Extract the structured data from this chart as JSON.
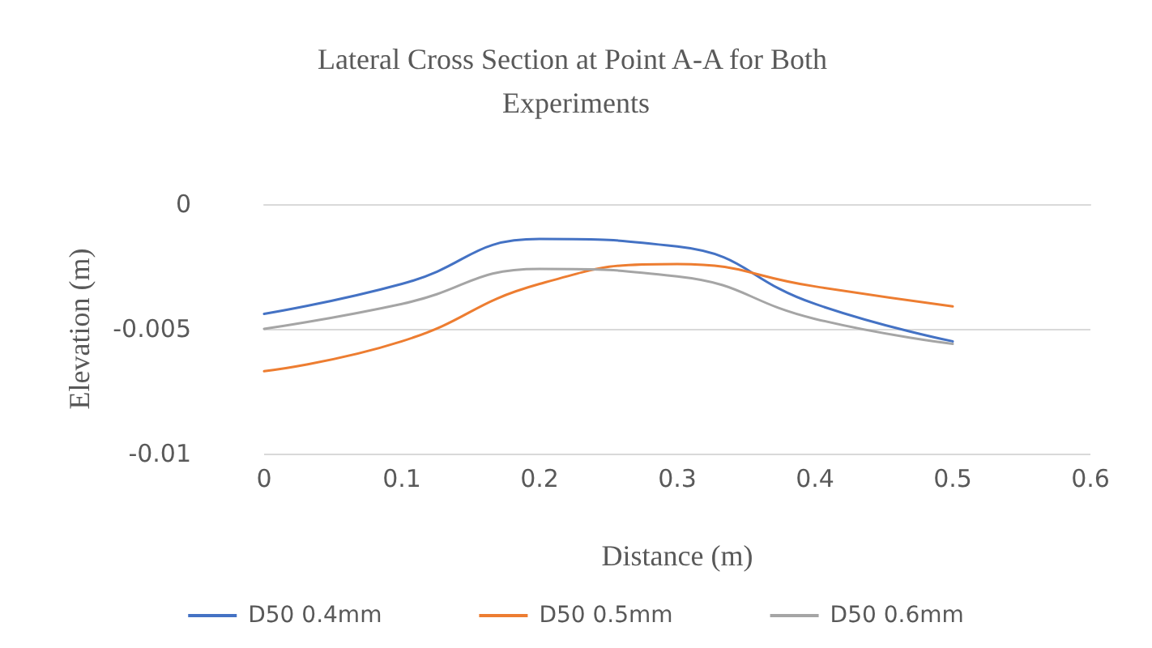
{
  "chart_data": {
    "type": "line",
    "title": "Lateral Cross Section at Point A-A for Both Experiments",
    "xlabel": "Distance (m)",
    "ylabel": "Elevation (m)",
    "x": [
      0,
      0.1,
      0.2,
      0.3,
      0.4,
      0.5
    ],
    "series": [
      {
        "name": "D50 0.4mm",
        "color": "#4472c4",
        "values": [
          -0.0044,
          -0.0032,
          -0.0014,
          -0.0017,
          -0.004,
          -0.0055
        ]
      },
      {
        "name": "D50 0.5mm",
        "color": "#ed7d31",
        "values": [
          -0.0067,
          -0.0055,
          -0.0032,
          -0.0024,
          -0.0033,
          -0.0041
        ]
      },
      {
        "name": "D50 0.6mm",
        "color": "#a5a5a5",
        "values": [
          -0.005,
          -0.004,
          -0.0026,
          -0.0029,
          -0.0046,
          -0.0056
        ]
      }
    ],
    "xlim": [
      0,
      0.6
    ],
    "xticks": [
      0,
      0.1,
      0.2,
      0.3,
      0.4,
      0.5,
      0.6
    ],
    "ylim": [
      -0.01,
      0
    ],
    "yticks": [
      -0.01,
      -0.005,
      0
    ],
    "grid": "y",
    "legend": "bottom",
    "marker": "none",
    "line_style": "solid"
  }
}
